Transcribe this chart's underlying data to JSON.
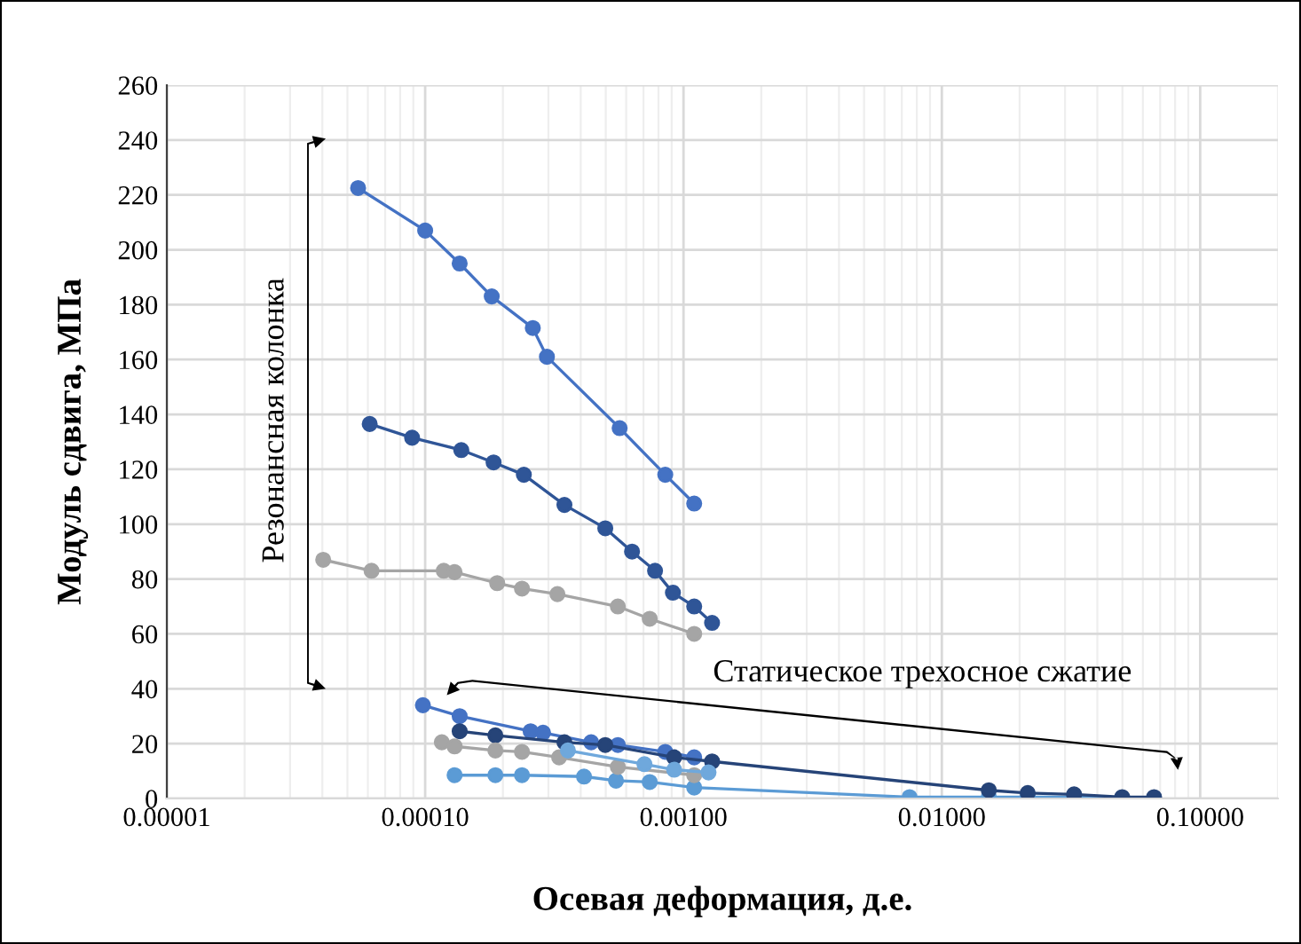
{
  "chart_data": {
    "type": "line",
    "xlabel": "Осевая деформация, д.е.",
    "ylabel": "Модуль сдвига, МПа",
    "log": "x",
    "grid": true,
    "marker": "circle",
    "line_style": "solid",
    "xlim": [
      1e-05,
      0.2
    ],
    "xticks": [
      {
        "value": 1e-05,
        "label": "0.00001"
      },
      {
        "value": 0.0001,
        "label": "0.00010"
      },
      {
        "value": 0.001,
        "label": "0.00100"
      },
      {
        "value": 0.01,
        "label": "0.01000"
      },
      {
        "value": 0.1,
        "label": "0.10000"
      }
    ],
    "ylim": [
      0,
      260
    ],
    "yticks": [
      0,
      20,
      40,
      60,
      80,
      100,
      120,
      140,
      160,
      180,
      200,
      220,
      240,
      260
    ],
    "annotations": [
      "Резонансная колонка",
      "Статическое трехосное сжатие"
    ],
    "series": [
      {
        "color": "#4472c4",
        "x": [
          5.5e-05,
          0.0001,
          0.000136,
          0.000181,
          0.000261,
          0.000296,
          0.000566,
          0.00085,
          0.0011
        ],
        "values": [
          222.5,
          207,
          195,
          183,
          171.5,
          161,
          135,
          118,
          107.5
        ]
      },
      {
        "color": "#2f5597",
        "x": [
          6.1e-05,
          8.9e-05,
          0.000138,
          0.000184,
          0.000241,
          0.000346,
          0.000498,
          0.000632,
          0.000776,
          0.00091,
          0.0011,
          0.00129
        ],
        "values": [
          136.5,
          131.5,
          127,
          122.5,
          118,
          107,
          98.5,
          90,
          83,
          75,
          70,
          64
        ]
      },
      {
        "color": "#a5a5a5",
        "x": [
          4.03e-05,
          6.2e-05,
          0.000118,
          0.00013,
          0.00019,
          0.000237,
          0.000325,
          0.000557,
          0.00074,
          0.0011
        ],
        "values": [
          87,
          83,
          83,
          82.5,
          78.5,
          76.5,
          74.5,
          70,
          65.5,
          60
        ]
      },
      {
        "color": "#4472c4",
        "x": [
          9.8e-05,
          0.000136,
          0.000256,
          0.000286,
          0.000439,
          0.000557,
          0.00085,
          0.0011
        ],
        "values": [
          34,
          30,
          24.5,
          24,
          20.5,
          19.5,
          17,
          15
        ]
      },
      {
        "color": "#5b9bd5",
        "x": [
          0.00013,
          0.000187,
          0.000237,
          0.000412,
          0.000548,
          0.00074,
          0.0011,
          0.0075,
          0.0152,
          0.0215,
          0.0325,
          0.0499
        ],
        "values": [
          8.5,
          8.5,
          8.5,
          8,
          6.5,
          6,
          4,
          0.5,
          0.5,
          0.5,
          0.5,
          0.3
        ]
      },
      {
        "color": "#264478",
        "x": [
          0.000136,
          0.000187,
          0.000346,
          0.000498,
          0.00092,
          0.00129,
          0.0152,
          0.0215,
          0.0325,
          0.0499,
          0.0663
        ],
        "values": [
          24.5,
          23,
          20.5,
          19.5,
          15,
          13.5,
          3,
          2,
          1.5,
          0.5,
          0.5
        ]
      },
      {
        "color": "#a5a5a5",
        "x": [
          0.000116,
          0.00013,
          0.000187,
          0.000237,
          0.00033,
          0.000557,
          0.0011
        ],
        "values": [
          20.5,
          19,
          17.5,
          17,
          15,
          11.5,
          8.5
        ]
      },
      {
        "color": "#6fa8dc",
        "x": [
          0.000357,
          0.000706,
          0.00092,
          0.00125
        ],
        "values": [
          17.5,
          12.5,
          10.5,
          9.5
        ]
      }
    ]
  }
}
